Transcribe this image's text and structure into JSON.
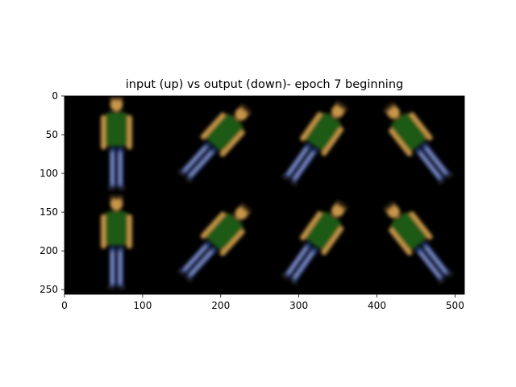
{
  "chart_data": {
    "type": "image",
    "title": "input (up) vs output (down)- epoch 7 beginning",
    "xlabel": "",
    "ylabel": "",
    "xlim": [
      0,
      512
    ],
    "ylim": [
      256,
      0
    ],
    "x_ticks": [
      0,
      100,
      200,
      300,
      400,
      500
    ],
    "y_ticks": [
      0,
      50,
      100,
      150,
      200,
      250
    ],
    "grid": false,
    "image": {
      "background": "#000000",
      "rows": 2,
      "cols": 4,
      "tile_size": 128,
      "figure_colors": {
        "skin": "#c8964a",
        "hair": "#3a2a12",
        "shirt": "#1e5a14",
        "pants": "#283c78",
        "pants_highlight": "#8c9ad2"
      },
      "tiles": [
        {
          "row": 0,
          "col": 0,
          "pose": "standing",
          "angle_deg": 0
        },
        {
          "row": 0,
          "col": 1,
          "pose": "tilted",
          "angle_deg": 42
        },
        {
          "row": 0,
          "col": 2,
          "pose": "tilted",
          "angle_deg": 35
        },
        {
          "row": 0,
          "col": 3,
          "pose": "tilted",
          "angle_deg": -38
        },
        {
          "row": 1,
          "col": 0,
          "pose": "standing",
          "angle_deg": 0
        },
        {
          "row": 1,
          "col": 1,
          "pose": "tilted",
          "angle_deg": 42
        },
        {
          "row": 1,
          "col": 2,
          "pose": "tilted",
          "angle_deg": 35
        },
        {
          "row": 1,
          "col": 3,
          "pose": "tilted",
          "angle_deg": -38
        }
      ]
    }
  }
}
